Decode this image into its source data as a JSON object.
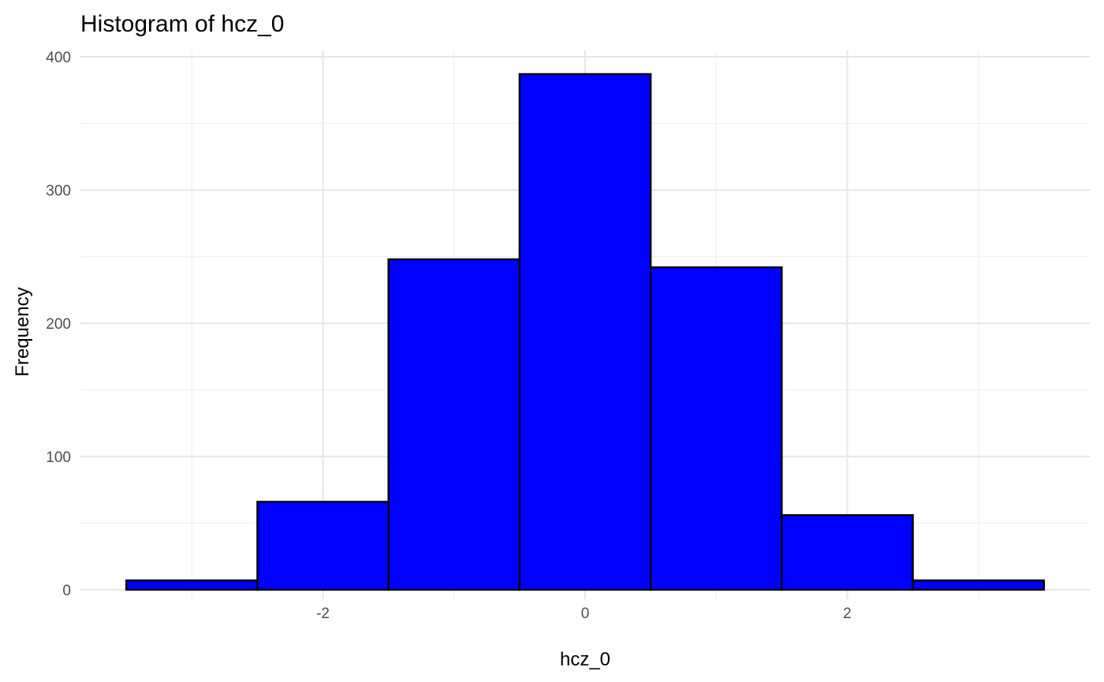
{
  "chart_data": {
    "type": "bar",
    "title": "Histogram of hcz_0",
    "xlabel": "hcz_0",
    "ylabel": "Frequency",
    "bins": [
      {
        "x0": -3.5,
        "x1": -2.5,
        "count": 7
      },
      {
        "x0": -2.5,
        "x1": -1.5,
        "count": 66
      },
      {
        "x0": -1.5,
        "x1": -0.5,
        "count": 248
      },
      {
        "x0": -0.5,
        "x1": 0.5,
        "count": 387
      },
      {
        "x0": 0.5,
        "x1": 1.5,
        "count": 242
      },
      {
        "x0": 1.5,
        "x1": 2.5,
        "count": 56
      },
      {
        "x0": 2.5,
        "x1": 3.5,
        "count": 7
      }
    ],
    "xlim": [
      -3.85,
      3.85
    ],
    "ylim": [
      0,
      400
    ],
    "xticks": [
      -2,
      0,
      2
    ],
    "xtick_labels": [
      "-2",
      "0",
      "2"
    ],
    "yticks": [
      0,
      100,
      200,
      300,
      400
    ],
    "ytick_labels": [
      "0",
      "100",
      "200",
      "300",
      "400"
    ],
    "grid": true,
    "bar_fill": "#0000ff",
    "bar_edge": "#000000"
  }
}
